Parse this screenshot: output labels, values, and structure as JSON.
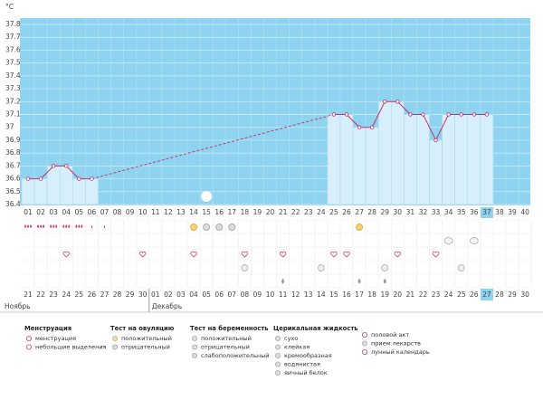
{
  "chart_data": {
    "type": "line",
    "y_label": "°C",
    "categories": [
      "01",
      "02",
      "03",
      "04",
      "05",
      "06",
      "07",
      "08",
      "09",
      "10",
      "11",
      "12",
      "13",
      "14",
      "15",
      "16",
      "17",
      "18",
      "19",
      "20",
      "21",
      "22",
      "23",
      "24",
      "25",
      "26",
      "27",
      "28",
      "29",
      "30",
      "31",
      "32",
      "33",
      "34",
      "35",
      "36",
      "37",
      "38",
      "39",
      "40"
    ],
    "series": [
      {
        "color": "#c0306a",
        "values": [
          36.6,
          36.6,
          36.7,
          36.7,
          36.6,
          36.6,
          null,
          null,
          null,
          null,
          null,
          null,
          null,
          null,
          null,
          null,
          null,
          null,
          null,
          null,
          null,
          null,
          null,
          null,
          37.1,
          37.1,
          37.0,
          37.0,
          37.2,
          37.2,
          37.1,
          37.1,
          36.9,
          37.1,
          37.1,
          37.1,
          37.1,
          null,
          null,
          null
        ]
      }
    ],
    "ylim": [
      36.4,
      37.8
    ],
    "yticks": [
      36.4,
      36.5,
      36.6,
      36.7,
      36.8,
      36.9,
      37,
      37.1,
      37.2,
      37.3,
      37.4,
      37.5,
      37.6,
      37.7,
      37.8
    ],
    "grid": true
  },
  "calendar": {
    "months": [
      "Ноябрь",
      "Декабрь"
    ],
    "dates": [
      "21",
      "22",
      "23",
      "24",
      "25",
      "26",
      "27",
      "28",
      "29",
      "30",
      "01",
      "02",
      "03",
      "04",
      "05",
      "06",
      "07",
      "08",
      "09",
      "10",
      "11",
      "12",
      "13",
      "14",
      "15",
      "16",
      "17",
      "18",
      "19",
      "20",
      "21",
      "22",
      "23",
      "24",
      "25",
      "26",
      "27",
      "28",
      "29",
      "30"
    ]
  },
  "legend": [
    {
      "title": "Менструация",
      "items": [
        "менструация",
        "небольшие выделения"
      ]
    },
    {
      "title": "Тест на овуляцию",
      "items": [
        "положительный",
        "отрицательный"
      ]
    },
    {
      "title": "Тест на беременность",
      "items": [
        "положительный",
        "отрицательный",
        "слабоположительный"
      ]
    },
    {
      "title": "Церикальная жидкость",
      "items": [
        "сухо",
        "клейкая",
        "кремообразная",
        "водянистая",
        "яичный белок"
      ]
    },
    {
      "items": [
        "половой акт",
        "прием лекарств",
        "лунный календарь"
      ]
    }
  ]
}
